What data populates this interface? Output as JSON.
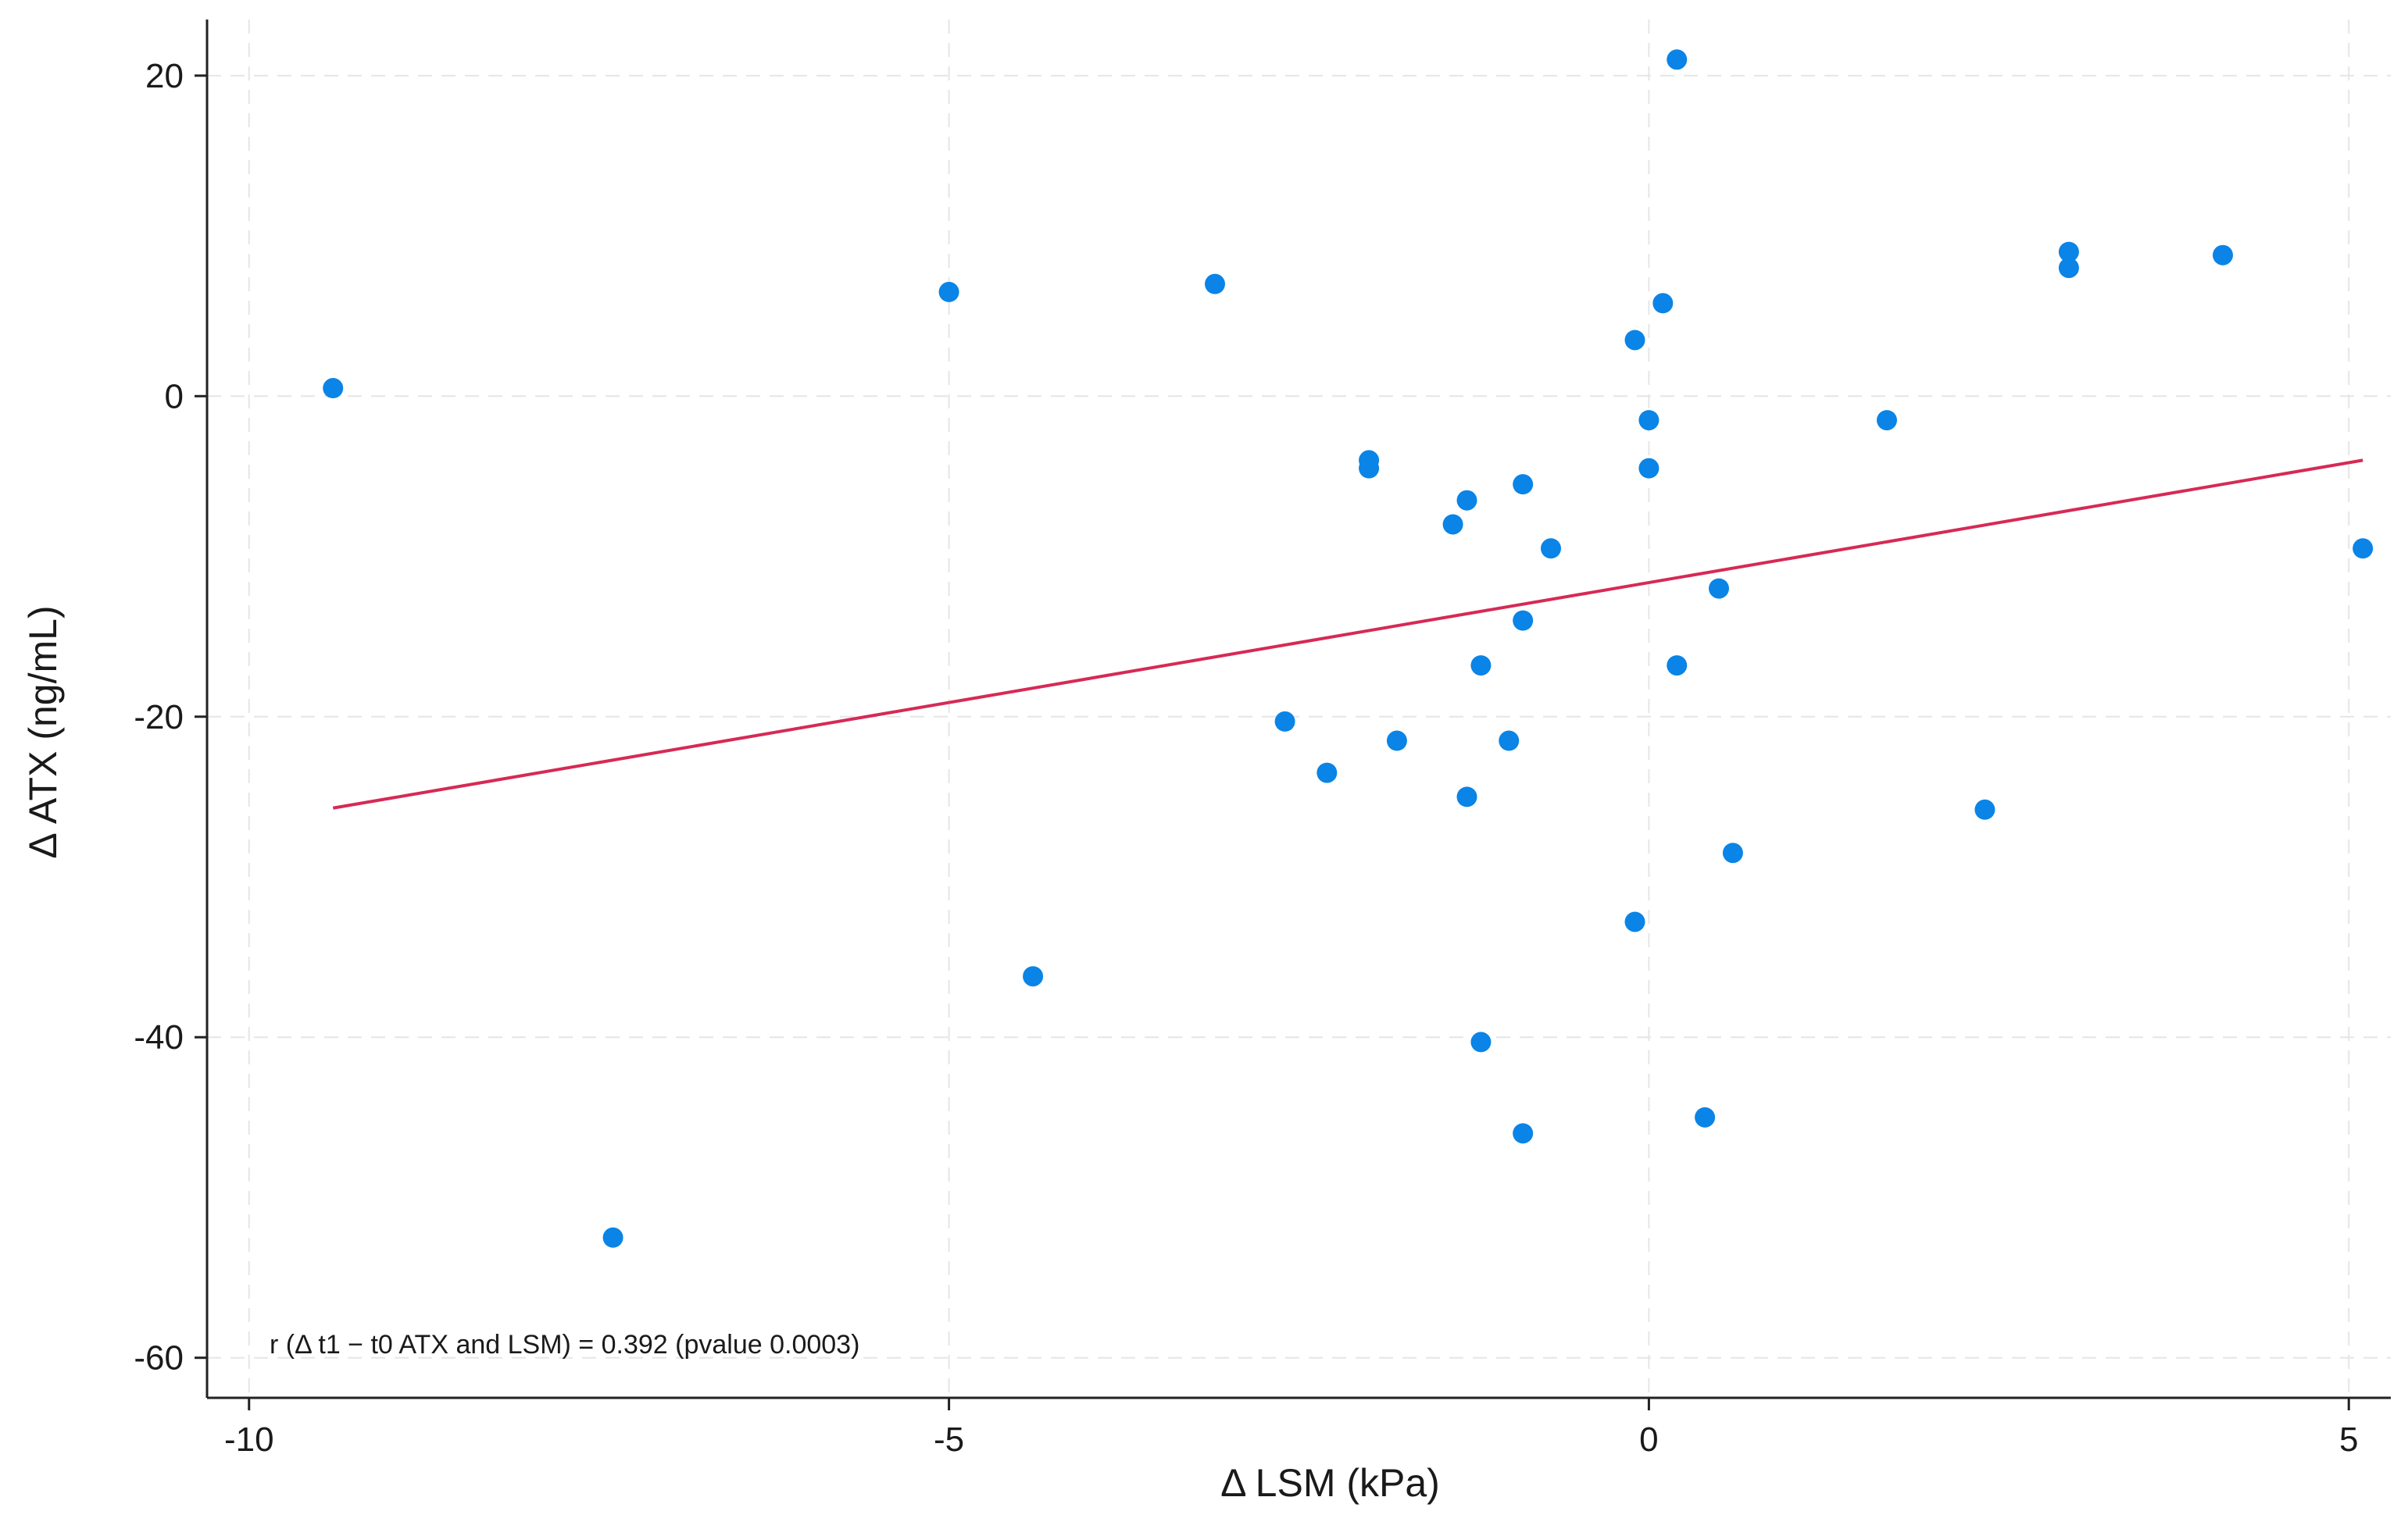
{
  "chart_data": {
    "type": "scatter",
    "title": "",
    "xlabel": "Δ LSM (kPa)",
    "ylabel": "Δ ATX (ng/mL)",
    "xlim": [
      -10.3,
      5.3
    ],
    "ylim": [
      -62.5,
      23.5
    ],
    "x_ticks": [
      -10,
      -5,
      0,
      5
    ],
    "x_tick_labels": [
      "-10",
      "-5",
      "0",
      "5"
    ],
    "y_ticks": [
      -60,
      -40,
      -20,
      0,
      20
    ],
    "y_tick_labels": [
      "-60",
      "-40",
      "-20",
      "0",
      "20"
    ],
    "grid": true,
    "annotation": "r (Δ t1 − t0  ATX and LSM) = 0.392 (pvalue 0.0003)",
    "points": {
      "x": [
        -9.4,
        -7.4,
        -5.0,
        -4.4,
        -3.1,
        -2.6,
        -2.3,
        -2.0,
        -2.0,
        -1.8,
        -1.4,
        -1.3,
        -1.3,
        -1.2,
        -1.2,
        -1.0,
        -0.9,
        -0.9,
        -0.9,
        -0.7,
        -0.1,
        -0.1,
        0.0,
        0.0,
        0.1,
        0.2,
        0.2,
        0.4,
        0.5,
        0.6,
        1.7,
        2.4,
        3.0,
        3.0,
        4.1,
        5.1
      ],
      "y": [
        0.5,
        -52.5,
        6.5,
        -36.2,
        7.0,
        -20.3,
        -23.5,
        -4.0,
        -4.5,
        -21.5,
        -8.0,
        -6.5,
        -25.0,
        -16.8,
        -40.3,
        -21.5,
        -5.5,
        -14.0,
        -46.0,
        -9.5,
        3.5,
        -32.8,
        -1.5,
        -4.5,
        5.8,
        21.0,
        -16.8,
        -45.0,
        -12.0,
        -28.5,
        -1.5,
        -25.8,
        9.0,
        8.0,
        8.8,
        -9.5
      ]
    },
    "series": [
      {
        "name": "observations",
        "type": "scatter"
      },
      {
        "name": "linear fit",
        "type": "line",
        "x": [
          -9.4,
          5.1
        ],
        "y": [
          -25.7,
          -4.0
        ]
      }
    ],
    "colors": {
      "points": "#0a84e6",
      "fit": "#d62a55",
      "grid": "#e6e6e6",
      "axis": "#222222"
    }
  }
}
